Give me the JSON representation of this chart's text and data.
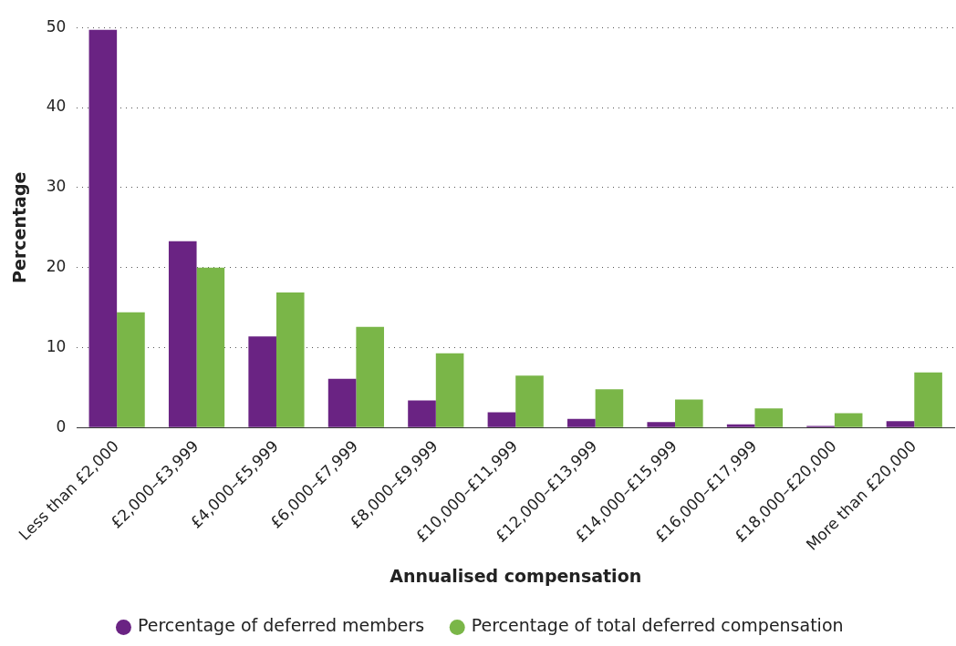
{
  "chart_data": {
    "type": "bar",
    "xlabel": "Annualised compensation",
    "ylabel": "Percentage",
    "categories": [
      "Less than £2,000",
      "£2,000–£3,999",
      "£4,000–£5,999",
      "£6,000–£7,999",
      "£8,000–£9,999",
      "£10,000–£11,999",
      "£12,000–£13,999",
      "£14,000–£15,999",
      "£16,000–£17,999",
      "£18,000–£20,000",
      "More than £20,000"
    ],
    "series": [
      {
        "name": "Percentage of deferred members",
        "color": "#6a2383",
        "values": [
          49.7,
          23.3,
          11.4,
          6.1,
          3.4,
          1.9,
          1.1,
          0.7,
          0.4,
          0.2,
          0.8
        ]
      },
      {
        "name": "Percentage of total deferred compensation",
        "color": "#7ab648",
        "values": [
          14.4,
          20.0,
          16.9,
          12.6,
          9.3,
          6.5,
          4.8,
          3.5,
          2.4,
          1.8,
          6.9
        ]
      }
    ],
    "ylim": [
      0,
      50
    ],
    "yticks": [
      0,
      10,
      20,
      30,
      40,
      50
    ],
    "grid": "y",
    "legend": "bottom",
    "marker": "circle"
  }
}
